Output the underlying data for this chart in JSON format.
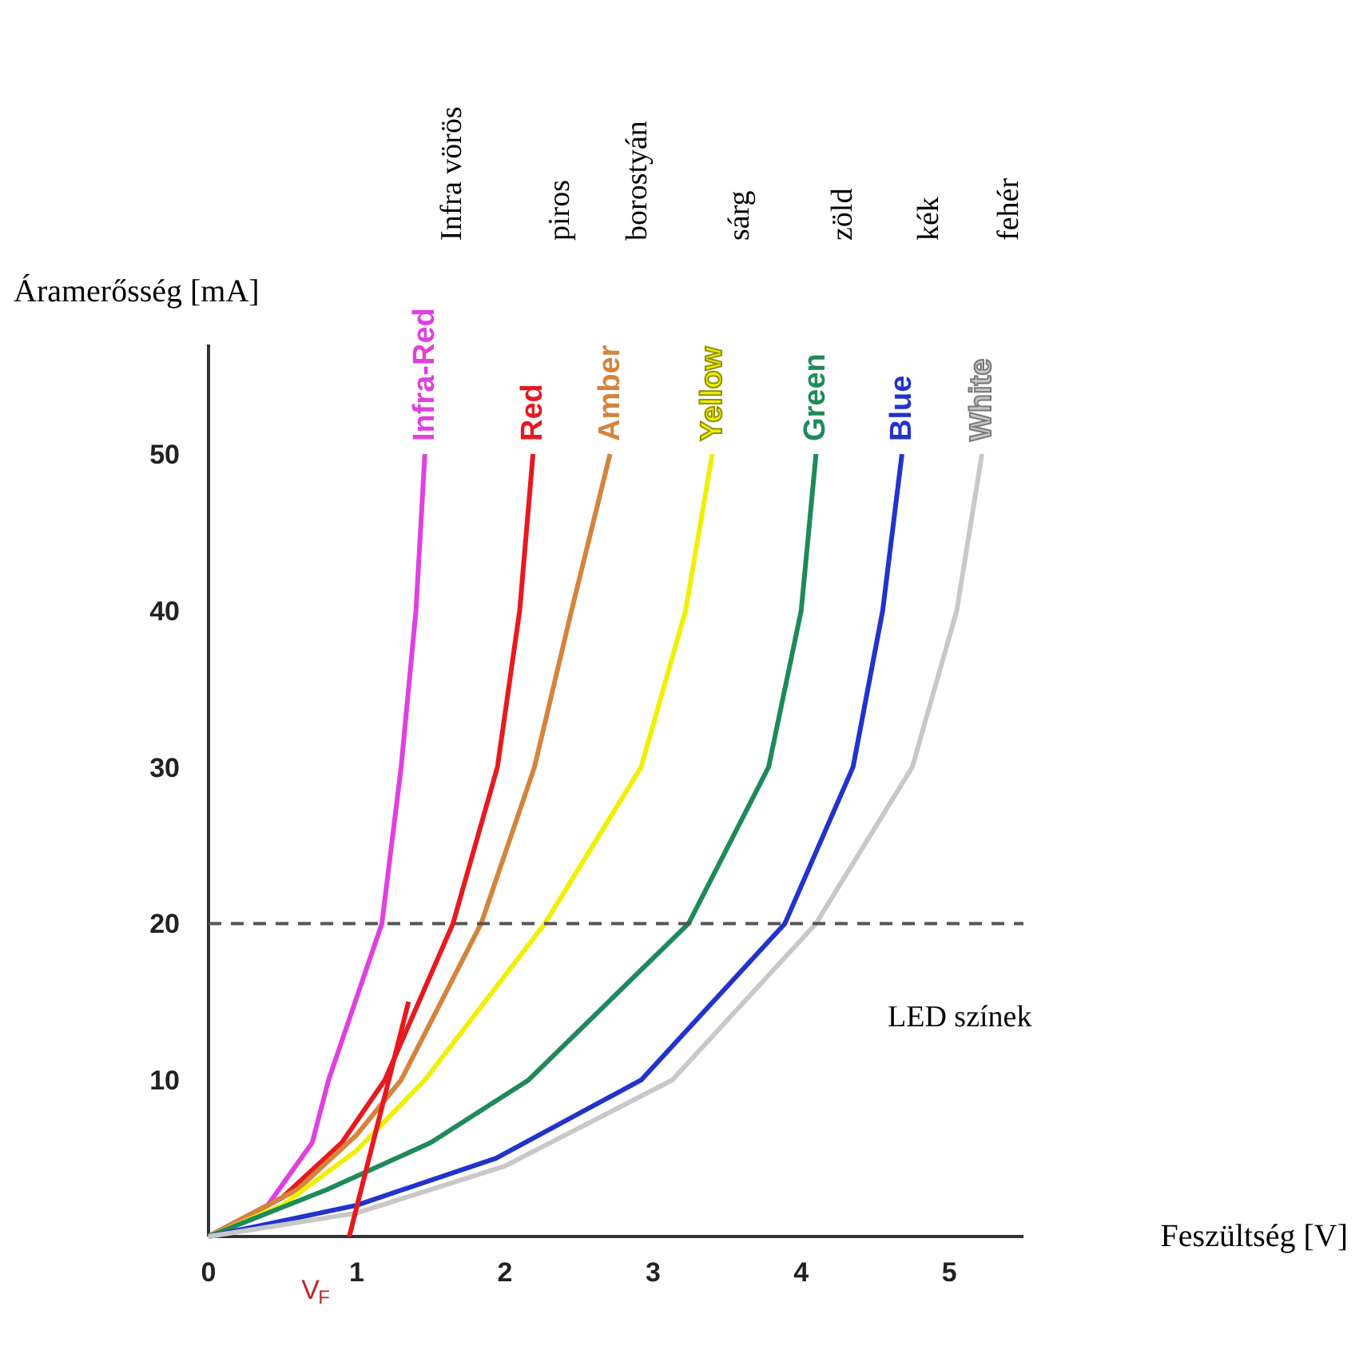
{
  "chart_data": {
    "type": "line",
    "xlabel": "Feszültség [V]",
    "ylabel": "Áramerősség [mA]",
    "xlim": [
      0,
      5.5
    ],
    "ylim": [
      0,
      57
    ],
    "xticks": [
      0,
      1,
      2,
      3,
      4,
      5
    ],
    "yticks": [
      10,
      20,
      30,
      40,
      50
    ],
    "grid": false,
    "legend": false,
    "line_style": "solid",
    "marker": "none",
    "series": [
      {
        "name": "Infra-Red",
        "color": "#e040e0",
        "x": [
          0,
          0.4,
          0.7,
          0.81,
          1.17,
          1.3,
          1.4,
          1.46
        ],
        "values": [
          0,
          2,
          6,
          10,
          20,
          30,
          40,
          50
        ]
      },
      {
        "name": "Red",
        "color": "#e8191e",
        "x": [
          0,
          0.5,
          0.9,
          1.19,
          1.65,
          1.95,
          2.1,
          2.19
        ],
        "values": [
          0,
          2.5,
          6,
          10,
          20,
          30,
          40,
          50
        ]
      },
      {
        "name": "Amber",
        "color": "#d4843c",
        "x": [
          0,
          0.6,
          1.0,
          1.3,
          1.84,
          2.2,
          2.45,
          2.71
        ],
        "values": [
          0,
          3,
          6.5,
          10,
          20,
          30,
          40,
          50
        ]
      },
      {
        "name": "Yellow",
        "color": "#f0f000",
        "x": [
          0,
          0.5,
          1.0,
          1.46,
          2.27,
          2.92,
          3.22,
          3.4
        ],
        "values": [
          0,
          2,
          5.5,
          10,
          20,
          30,
          40,
          50
        ]
      },
      {
        "name": "Green",
        "color": "#1e8a5a",
        "x": [
          0,
          0.8,
          1.5,
          2.16,
          3.24,
          3.78,
          4.0,
          4.1
        ],
        "values": [
          0,
          3,
          6,
          10,
          20,
          30,
          40,
          50
        ]
      },
      {
        "name": "Blue",
        "color": "#2233cc",
        "x": [
          0,
          1.0,
          1.94,
          2.92,
          3.89,
          4.35,
          4.55,
          4.68
        ],
        "values": [
          0,
          2,
          5,
          10,
          20,
          30,
          40,
          50
        ]
      },
      {
        "name": "White",
        "color": "#c8c8c8",
        "x": [
          0,
          1.0,
          2.0,
          3.13,
          4.1,
          4.75,
          5.05,
          5.22
        ],
        "values": [
          0,
          1.5,
          4.5,
          10,
          20,
          30,
          40,
          50
        ]
      },
      {
        "color": "#e8191e",
        "x": [
          0.95,
          1.35
        ],
        "values": [
          0,
          15
        ]
      }
    ],
    "ref_lines": [
      {
        "axis": "y",
        "value": 20,
        "color": "#555555",
        "line_style": "dashed"
      }
    ],
    "annotations": [
      "Infra vörös",
      "piros",
      "borostyán",
      "sárg",
      "zöld",
      "kék",
      "fehér",
      "LED színek",
      {
        "text": "V$_{F}$",
        "x": 0.95,
        "y": 0
      }
    ]
  }
}
